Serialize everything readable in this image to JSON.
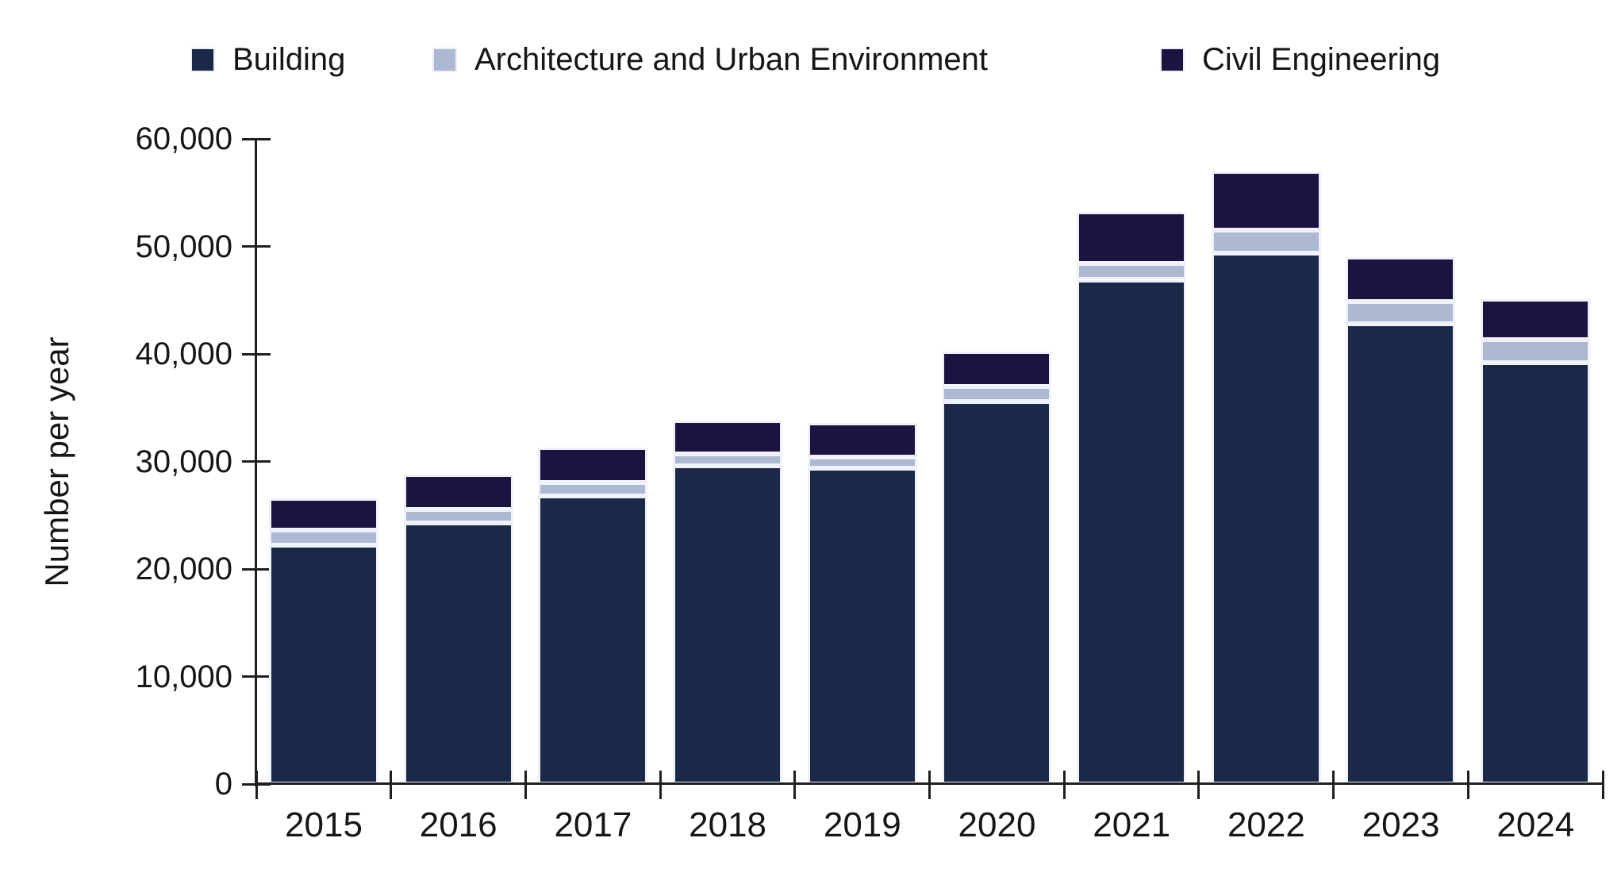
{
  "chart_data": {
    "type": "bar",
    "stacked": true,
    "title": "",
    "xlabel": "",
    "ylabel": "Number per year",
    "ylim": [
      0,
      60000
    ],
    "y_tick_interval": 10000,
    "y_tick_labels": [
      "0",
      "10,000",
      "20,000",
      "30,000",
      "40,000",
      "50,000",
      "60,000"
    ],
    "grid": false,
    "legend_position": "top",
    "categories": [
      "2015",
      "2016",
      "2017",
      "2018",
      "2019",
      "2020",
      "2021",
      "2022",
      "2023",
      "2024"
    ],
    "series": [
      {
        "name": "Building",
        "color": "#1b2948",
        "values": [
          22200,
          24300,
          26800,
          29600,
          29400,
          35600,
          46900,
          49400,
          42800,
          39200
        ]
      },
      {
        "name": "Architecture and Urban Environment",
        "color": "#adb8d3",
        "values": [
          1400,
          1200,
          1250,
          1100,
          1000,
          1400,
          1500,
          2100,
          2100,
          2100
        ]
      },
      {
        "name": "Civil Engineering",
        "color": "#1b1340",
        "values": [
          3000,
          3300,
          3250,
          3100,
          3200,
          3200,
          4800,
          5500,
          4100,
          3800
        ]
      }
    ]
  },
  "colors": {
    "axis": "#1f1f1f",
    "text": "#161616",
    "segment_border": "#f0f2f9",
    "background": "#ffffff"
  }
}
